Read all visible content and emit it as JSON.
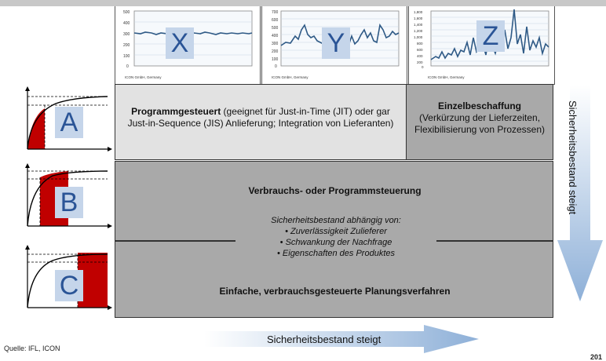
{
  "charts": [
    {
      "letter": "X",
      "source": "ICON GmbH, Germany",
      "yticks": [
        "500",
        "400",
        "300",
        "200",
        "100",
        "0"
      ]
    },
    {
      "letter": "Y",
      "source": "ICON GmbH, Germany",
      "yticks": [
        "700",
        "600",
        "500",
        "400",
        "300",
        "200",
        "100",
        "0"
      ]
    },
    {
      "letter": "Z",
      "source": "ICON GmbH, Germany",
      "yticks": [
        "1,800",
        "1,600",
        "1,400",
        "1,200",
        "1,000",
        "800",
        "600",
        "400",
        "200",
        "0"
      ]
    }
  ],
  "rows": [
    {
      "letter": "A"
    },
    {
      "letter": "B"
    },
    {
      "letter": "C"
    }
  ],
  "cells": {
    "ax_title": "Programmgesteuert",
    "ax_text": " (geeignet für Just-in-Time (JIT) oder gar Just-in-Sequence (JIS) Anlieferung; Integration von Lieferanten)",
    "az_title": "Einzelbeschaffung",
    "az_text": "(Verkürzung der Lieferzeiten, Flexibilisierung von Prozessen)",
    "b_title": "Verbrauchs- oder Programmsteuerung",
    "mid_heading": "Sicherheitsbestand abhängig von:",
    "mid_items": [
      "• Zuverlässigkeit Zulieferer",
      "• Schwankung der Nachfrage",
      "• Eigenschaften des Produktes"
    ],
    "c_title": "Einfache, verbrauchsgesteuerte Planungsverfahren"
  },
  "vertical_arrow_label": "Sicherheitsbestand steigt",
  "horizontal_arrow_label": "Sicherheitsbestand steigt",
  "source": "Quelle: IFL, ICON",
  "page_number": "201"
}
